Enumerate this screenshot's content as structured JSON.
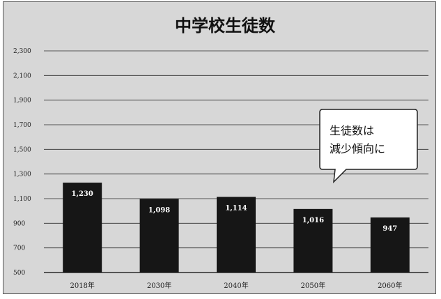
{
  "chart_data": {
    "type": "bar",
    "title": "中学校生徒数",
    "categories": [
      "2018年",
      "2030年",
      "2040年",
      "2050年",
      "2060年"
    ],
    "values": [
      1230,
      1098,
      1114,
      1016,
      947
    ],
    "value_labels": [
      "1,230",
      "1,098",
      "1,114",
      "1,016",
      "947"
    ],
    "ylim": [
      500,
      2300
    ],
    "yticks": [
      500,
      700,
      900,
      1100,
      1300,
      1500,
      1700,
      1900,
      2100,
      2300
    ],
    "ytick_labels": [
      "500",
      "700",
      "900",
      "1,100",
      "1,300",
      "1,500",
      "1,700",
      "1,900",
      "2,100",
      "2,300"
    ],
    "grid": true,
    "xlabel": "",
    "ylabel": "",
    "annotation": {
      "lines": [
        "生徒数は",
        "減少傾向に"
      ]
    },
    "colors": {
      "bar": "#161616",
      "background": "#d7d7d7",
      "gridline": "#2a2a2a"
    }
  }
}
